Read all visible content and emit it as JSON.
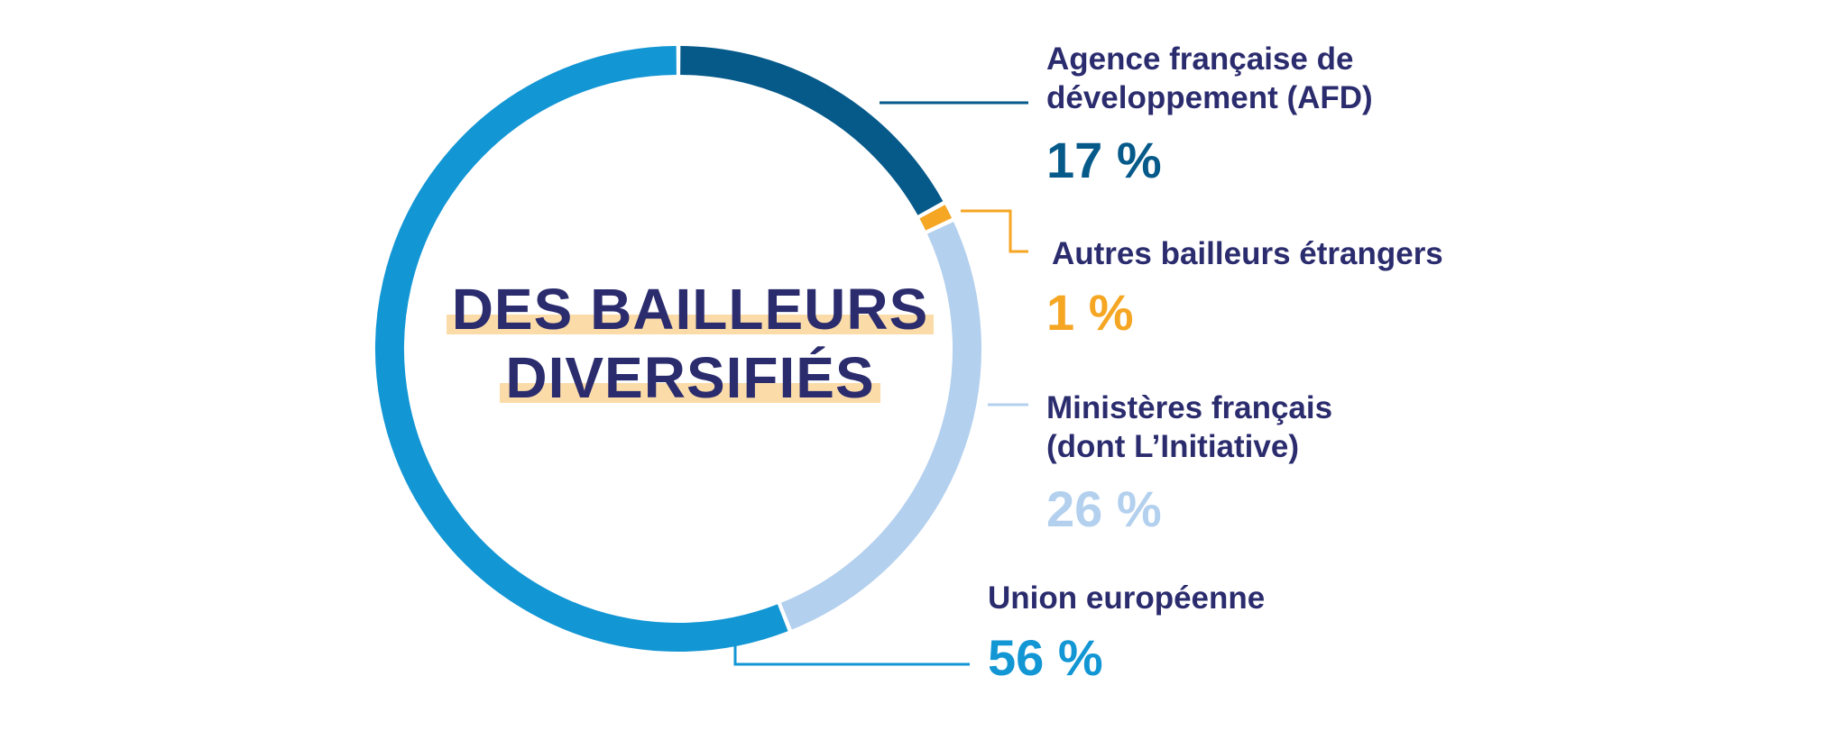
{
  "title_lines": [
    "DES BAILLEURS",
    "DIVERSIFIÉS"
  ],
  "chart_data": {
    "type": "pie",
    "style": "donut",
    "categories": [
      "Agence française de développement (AFD)",
      "Autres bailleurs étrangers",
      "Ministères français (dont L’Initiative)",
      "Union européenne"
    ],
    "values": [
      17,
      1,
      26,
      56
    ],
    "value_labels": [
      "17 %",
      "1 %",
      "26 %",
      "56 %"
    ],
    "colors": [
      "#065a8a",
      "#f5a623",
      "#b3d0ee",
      "#1296d4"
    ],
    "title_color": "#2b2c6e",
    "title_highlight_color": "#fbdca8"
  },
  "labels": [
    {
      "lines": [
        "Agence française de",
        "développement (AFD)"
      ],
      "value": "17 %",
      "color": "#065a8a"
    },
    {
      "lines": [
        "Autres bailleurs étrangers"
      ],
      "value": "1 %",
      "color": "#f5a623"
    },
    {
      "lines": [
        "Ministères français",
        "(dont L’Initiative)"
      ],
      "value": "26 %",
      "color": "#b3d0ee"
    },
    {
      "lines": [
        "Union européenne"
      ],
      "value": "56 %",
      "color": "#1296d4"
    }
  ]
}
